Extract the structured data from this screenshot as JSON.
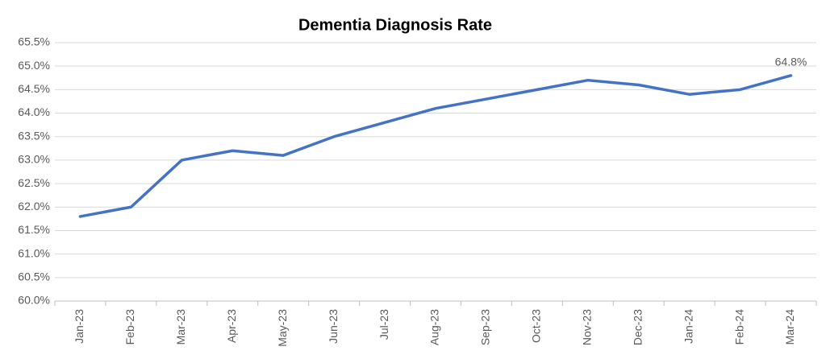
{
  "chart_data": {
    "type": "line",
    "title": "Dementia Diagnosis Rate",
    "categories": [
      "Jan-23",
      "Feb-23",
      "Mar-23",
      "Apr-23",
      "May-23",
      "Jun-23",
      "Jul-23",
      "Aug-23",
      "Sep-23",
      "Oct-23",
      "Nov-23",
      "Dec-23",
      "Jan-24",
      "Feb-24",
      "Mar-24"
    ],
    "series": [
      {
        "name": "Dementia Diagnosis Rate",
        "color": "#4472c4",
        "values": [
          61.8,
          62.0,
          63.0,
          63.2,
          63.1,
          63.5,
          63.8,
          64.1,
          64.3,
          64.5,
          64.7,
          64.6,
          64.4,
          64.5,
          64.8
        ],
        "value_labels": [
          null,
          null,
          null,
          null,
          null,
          null,
          null,
          null,
          null,
          null,
          null,
          null,
          null,
          null,
          "64.8%"
        ]
      }
    ],
    "ylim": [
      60,
      65.5
    ],
    "yticks": [
      {
        "value": 60,
        "label": "60.0%"
      },
      {
        "value": 60.5,
        "label": "60.5%"
      },
      {
        "value": 61,
        "label": "61.0%"
      },
      {
        "value": 61.5,
        "label": "61.5%"
      },
      {
        "value": 62,
        "label": "62.0%"
      },
      {
        "value": 62.5,
        "label": "62.5%"
      },
      {
        "value": 63,
        "label": "63.0%"
      },
      {
        "value": 63.5,
        "label": "63.5%"
      },
      {
        "value": 64,
        "label": "64.0%"
      },
      {
        "value": 64.5,
        "label": "64.5%"
      },
      {
        "value": 65,
        "label": "65.0%"
      },
      {
        "value": 65.5,
        "label": "65.5%"
      }
    ],
    "grid": true
  }
}
